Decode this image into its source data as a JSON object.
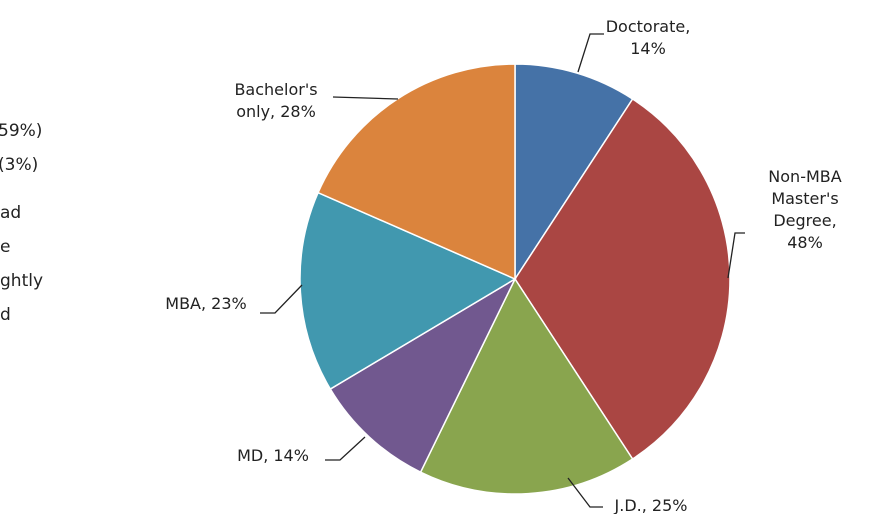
{
  "chart_data": {
    "type": "pie",
    "values": [
      14,
      48,
      25,
      14,
      23,
      28
    ],
    "value_labels": [
      "Doctorate,\n14%",
      "Non-MBA\nMaster's\nDegree, 48%",
      "J.D., 25%",
      "MD, 14%",
      "MBA, 23%",
      "Bachelor's\nonly, 28%"
    ],
    "colors": [
      "#4572a7",
      "#aa4643",
      "#89a54e",
      "#71588f",
      "#4198af",
      "#db843d"
    ]
  },
  "background_text": [
    "59%)",
    "(3%)",
    "ad",
    "e",
    "ghtly",
    "d"
  ]
}
